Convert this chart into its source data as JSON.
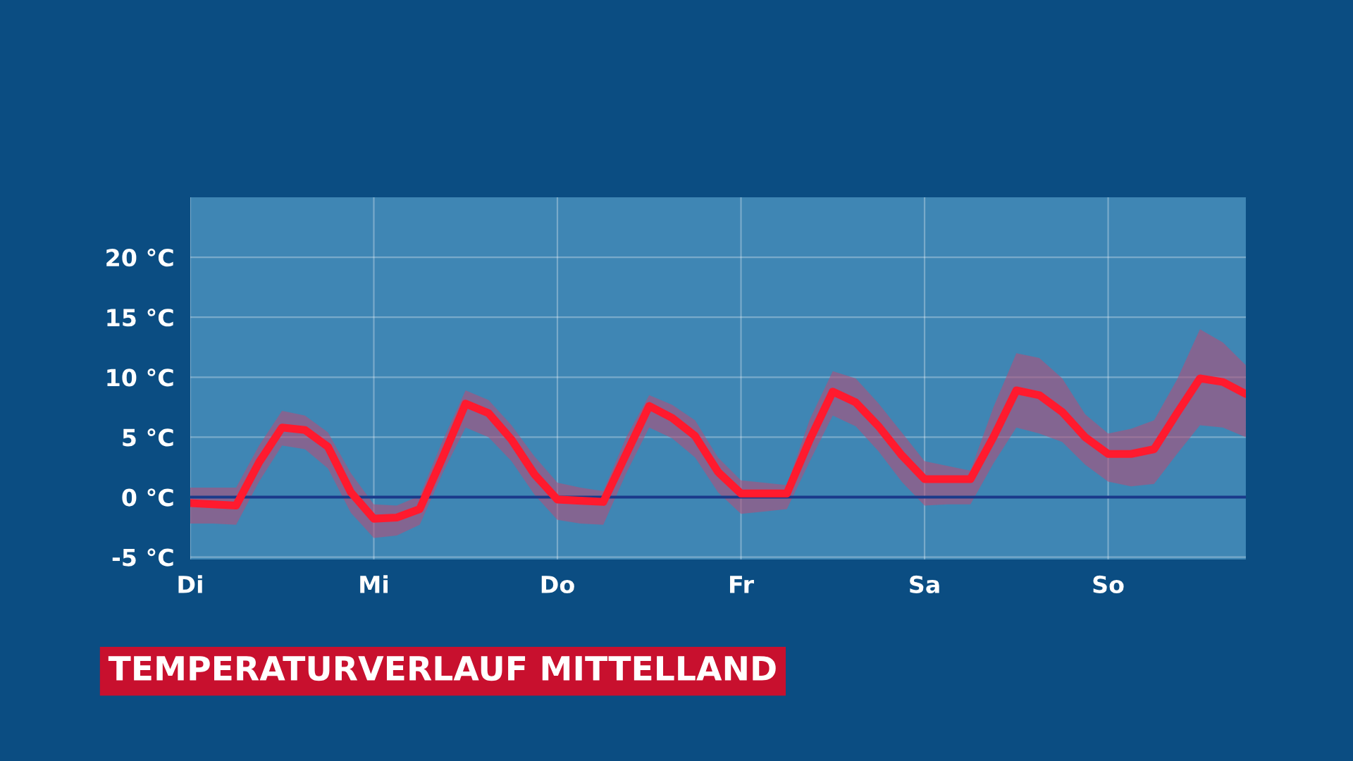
{
  "chart_data": {
    "type": "line",
    "title": "TEMPERATURVERLAUF MITTELLAND",
    "categories": [
      "Di",
      null,
      null,
      null,
      null,
      null,
      null,
      null,
      "Mi",
      null,
      null,
      null,
      null,
      null,
      null,
      null,
      "Do",
      null,
      null,
      null,
      null,
      null,
      null,
      null,
      "Fr",
      null,
      null,
      null,
      null,
      null,
      null,
      null,
      "Sa",
      null,
      null,
      null,
      null,
      null,
      null,
      null,
      "So",
      null,
      null,
      null,
      null,
      null,
      null
    ],
    "series": [
      {
        "color": "#ff1a2e",
        "values": [
          -0.5,
          -0.6,
          -0.7,
          2.9,
          5.8,
          5.6,
          4.2,
          0.4,
          -1.8,
          -1.7,
          -1.0,
          3.3,
          7.8,
          7.0,
          4.8,
          1.9,
          -0.2,
          -0.3,
          -0.4,
          3.6,
          7.6,
          6.6,
          5.1,
          2.1,
          0.3,
          0.3,
          0.3,
          4.8,
          8.8,
          7.9,
          5.9,
          3.5,
          1.5,
          1.5,
          1.5,
          5.0,
          8.9,
          8.5,
          7.1,
          5.0,
          3.6,
          3.6,
          4.0,
          7.0,
          9.9,
          9.6,
          8.6
        ],
        "lower": [
          -2.2,
          -2.2,
          -2.3,
          1.3,
          4.3,
          4.0,
          2.4,
          -1.3,
          -3.4,
          -3.2,
          -2.3,
          2.0,
          5.8,
          5.0,
          3.0,
          0.2,
          -1.9,
          -2.2,
          -2.3,
          2.0,
          5.8,
          4.9,
          3.3,
          0.4,
          -1.4,
          -1.2,
          -1.0,
          3.0,
          6.8,
          5.9,
          3.8,
          1.3,
          -0.7,
          -0.6,
          -0.6,
          2.8,
          5.8,
          5.3,
          4.6,
          2.7,
          1.3,
          0.9,
          1.1,
          3.6,
          6.0,
          5.8,
          5.0
        ],
        "upper": [
          0.8,
          0.8,
          0.8,
          4.3,
          7.2,
          6.8,
          5.4,
          2.0,
          -0.6,
          -0.7,
          0.1,
          4.7,
          8.9,
          8.1,
          6.0,
          3.4,
          1.2,
          0.8,
          0.5,
          5.0,
          8.5,
          7.7,
          6.4,
          3.3,
          1.4,
          1.2,
          1.0,
          6.5,
          10.5,
          9.9,
          7.8,
          5.4,
          3.0,
          2.6,
          2.2,
          7.5,
          12.0,
          11.6,
          9.9,
          6.9,
          5.3,
          5.7,
          6.4,
          9.8,
          14.0,
          12.9,
          11.0
        ]
      }
    ],
    "ylim": [
      -5.2,
      25
    ],
    "yticks": [
      {
        "value": -5,
        "label": "-5 °C"
      },
      {
        "value": 0,
        "label": "0 °C"
      },
      {
        "value": 5,
        "label": "5 °C"
      },
      {
        "value": 10,
        "label": "10 °C"
      },
      {
        "value": 15,
        "label": "15 °C"
      },
      {
        "value": 20,
        "label": "20 °C"
      }
    ],
    "grid": true,
    "ref_lines": [
      {
        "axis": "y",
        "value": 0,
        "color": "#1a3a8a"
      }
    ]
  }
}
